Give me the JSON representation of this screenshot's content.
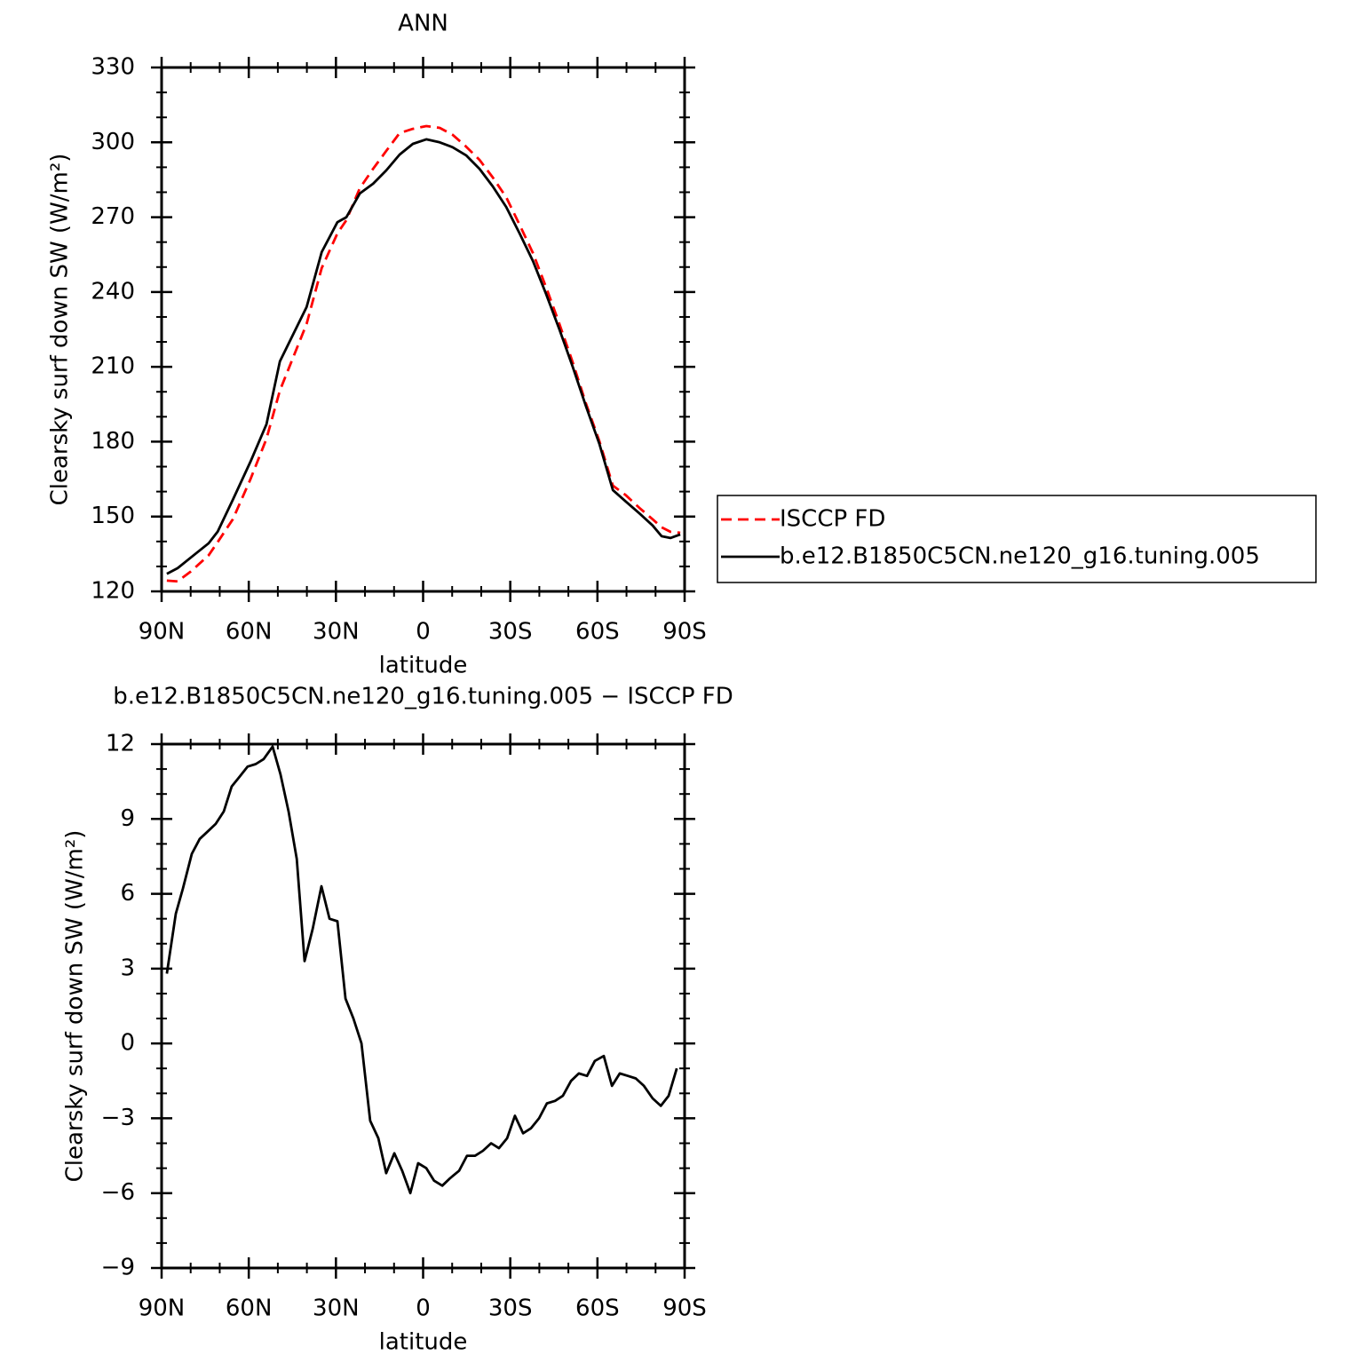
{
  "chart_data": [
    {
      "type": "line",
      "title": "ANN",
      "xlabel": "latitude",
      "ylabel": "Clearsky surf down SW (W/m²)",
      "x": [
        88.2,
        84.5,
        79.9,
        73.8,
        70.7,
        65.5,
        59.4,
        53.9,
        49.3,
        40.1,
        34.9,
        29.5,
        26.4,
        21.8,
        17.2,
        12.7,
        8.1,
        3.5,
        -1.1,
        -5.7,
        -10.2,
        -14.8,
        -19.4,
        -24,
        -28.6,
        -33.2,
        -37.8,
        -42.3,
        -46.9,
        -51.5,
        -56.1,
        -60.7,
        -65.3,
        -69.8,
        -74.4,
        -79,
        -82.1,
        -85.1,
        -88.5
      ],
      "series": [
        {
          "name": "ISCCP FD",
          "color": "#ff0000",
          "dash": true,
          "values": [
            124.3,
            124,
            128,
            134.5,
            139.8,
            148.9,
            165,
            181.2,
            200.5,
            227.2,
            249.6,
            263.5,
            268.8,
            281.6,
            289.4,
            296.5,
            303.7,
            305.4,
            306.5,
            305.8,
            303,
            298.3,
            293,
            285.9,
            278,
            267,
            255.6,
            242,
            227.2,
            211.8,
            195.1,
            180.1,
            162.4,
            158.5,
            153.5,
            148.9,
            145.7,
            143.9,
            143.5
          ]
        },
        {
          "name": "b.e12.B1850C5CN.ne120_g16.tuning.005",
          "color": "#000000",
          "dash": false,
          "values": [
            127,
            129.3,
            133.6,
            139.3,
            144,
            156.7,
            172,
            187,
            212.2,
            234,
            256,
            268,
            270,
            279.5,
            283.4,
            288.7,
            295.1,
            299.4,
            301.2,
            300,
            298,
            294.8,
            289.4,
            282.3,
            274.1,
            263.5,
            252.4,
            239.3,
            225,
            210,
            194,
            179,
            160.6,
            156,
            151.3,
            146.4,
            142.1,
            141.4,
            142.8
          ]
        }
      ],
      "xlim": [
        90,
        -90
      ],
      "xticks": [
        {
          "value": 90,
          "label": "90N"
        },
        {
          "value": 60,
          "label": "60N"
        },
        {
          "value": 30,
          "label": "30N"
        },
        0,
        {
          "value": -30,
          "label": "30S"
        },
        {
          "value": -60,
          "label": "60S"
        },
        {
          "value": -90,
          "label": "90S"
        }
      ],
      "xminorticks": [
        80,
        70,
        50,
        40,
        20,
        10,
        -10,
        -20,
        -40,
        -50,
        -70,
        -80
      ],
      "ylim": [
        120,
        330
      ],
      "yticks": [
        120,
        150,
        180,
        210,
        240,
        270,
        300,
        330
      ],
      "yminorticks": [
        130,
        140,
        160,
        170,
        190,
        200,
        220,
        230,
        250,
        260,
        280,
        290,
        310,
        320
      ],
      "legend": "right"
    },
    {
      "type": "line",
      "title": "b.e12.B1850C5CN.ne120_g16.tuning.005 − ISCCP FD",
      "xlabel": "latitude",
      "ylabel": "Clearsky surf down SW (W/m²)",
      "x": [
        88.2,
        85.1,
        82.7,
        79.6,
        76.9,
        74.1,
        71.4,
        68.6,
        65.9,
        63.1,
        60.4,
        57.6,
        54.9,
        51.8,
        49.1,
        46.3,
        43.5,
        40.8,
        38.0,
        35.0,
        32.2,
        29.5,
        26.7,
        24.0,
        21.2,
        18.2,
        15.4,
        12.7,
        9.9,
        7.2,
        4.4,
        1.7,
        -1.1,
        -3.8,
        -6.6,
        -9.3,
        -12.4,
        -15.1,
        -17.9,
        -20.6,
        -23.4,
        -26.1,
        -28.9,
        -31.6,
        -34.4,
        -37.1,
        -39.9,
        -42.6,
        -45.4,
        -48.1,
        -50.9,
        -53.6,
        -56.4,
        -59.1,
        -62.2,
        -65.0,
        -67.7,
        -70.5,
        -73.2,
        -76.0,
        -79.0,
        -81.8,
        -84.5,
        -87.3
      ],
      "series": [
        {
          "name": "b.e12.B1850C5CN.ne120_g16.tuning.005 − ISCCP FD",
          "color": "#000000",
          "dash": false,
          "values": [
            2.8,
            5.2,
            6.2,
            7.6,
            8.2,
            8.5,
            8.8,
            9.3,
            10.3,
            10.7,
            11.1,
            11.2,
            11.4,
            11.9,
            10.8,
            9.3,
            7.4,
            3.3,
            4.6,
            6.3,
            5.0,
            4.9,
            1.8,
            1.0,
            0.0,
            -3.1,
            -3.8,
            -5.2,
            -4.4,
            -5.1,
            -6.0,
            -4.8,
            -5.0,
            -5.5,
            -5.7,
            -5.4,
            -5.1,
            -4.5,
            -4.5,
            -4.3,
            -4.0,
            -4.2,
            -3.8,
            -2.9,
            -3.6,
            -3.4,
            -3.0,
            -2.4,
            -2.3,
            -2.1,
            -1.5,
            -1.2,
            -1.3,
            -0.7,
            -0.5,
            -1.7,
            -1.2,
            -1.3,
            -1.4,
            -1.7,
            -2.2,
            -2.5,
            -2.1,
            -1.0
          ]
        }
      ],
      "xlim": [
        90,
        -90
      ],
      "xticks": [
        {
          "value": 90,
          "label": "90N"
        },
        {
          "value": 60,
          "label": "60N"
        },
        {
          "value": 30,
          "label": "30N"
        },
        0,
        {
          "value": -30,
          "label": "30S"
        },
        {
          "value": -60,
          "label": "60S"
        },
        {
          "value": -90,
          "label": "90S"
        }
      ],
      "xminorticks": [
        80,
        70,
        50,
        40,
        20,
        10,
        -10,
        -20,
        -40,
        -50,
        -70,
        -80
      ],
      "ylim": [
        -9,
        12
      ],
      "yticks": [
        {
          "value": -9,
          "label": "−9"
        },
        {
          "value": -6,
          "label": "−6"
        },
        {
          "value": -3,
          "label": "−3"
        },
        0,
        3,
        6,
        9,
        12
      ],
      "yminorticks": [
        11,
        10,
        8,
        7,
        5,
        4,
        2,
        1,
        -1,
        -2,
        -4,
        -5,
        -7,
        -8
      ]
    }
  ]
}
